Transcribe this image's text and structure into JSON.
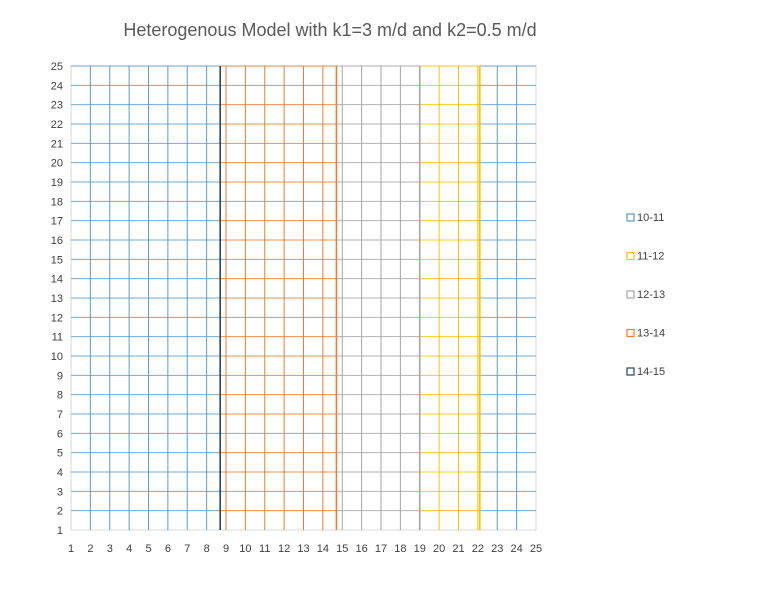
{
  "chart_data": {
    "type": "contour-wireframe",
    "title": "Heterogenous Model with k1=3 m/d and k2=0.5 m/d",
    "x_ticks": [
      1,
      2,
      3,
      4,
      5,
      6,
      7,
      8,
      9,
      10,
      11,
      12,
      13,
      14,
      15,
      16,
      17,
      18,
      19,
      20,
      21,
      22,
      23,
      24,
      25
    ],
    "y_ticks": [
      1,
      2,
      3,
      4,
      5,
      6,
      7,
      8,
      9,
      10,
      11,
      12,
      13,
      14,
      15,
      16,
      17,
      18,
      19,
      20,
      21,
      22,
      23,
      24,
      25
    ],
    "xlim": [
      1,
      25
    ],
    "ylim": [
      1,
      25
    ],
    "grid": true,
    "legend_position": "right",
    "series": [
      {
        "name": "10-11",
        "color": "#5b9bd5"
      },
      {
        "name": "11-12",
        "color": "#ffc000"
      },
      {
        "name": "12-13",
        "color": "#a5a5a5"
      },
      {
        "name": "13-14",
        "color": "#ed7d31"
      },
      {
        "name": "14-15",
        "color": "#264478"
      }
    ],
    "contour_lines": [
      {
        "x": 8.7,
        "series": "14-15"
      },
      {
        "x": 14.7,
        "series": "13-14"
      },
      {
        "x": 19.0,
        "series": "12-13"
      },
      {
        "x": 22.1,
        "series": "11-12"
      }
    ],
    "bands": [
      {
        "from": 1,
        "to": 8.7,
        "series": "10-11"
      },
      {
        "from": 8.7,
        "to": 14.7,
        "series": "13-14"
      },
      {
        "from": 14.7,
        "to": 19.0,
        "series": "12-13"
      },
      {
        "from": 19.0,
        "to": 22.1,
        "series": "11-12"
      },
      {
        "from": 22.1,
        "to": 25,
        "series": "10-11"
      }
    ]
  }
}
